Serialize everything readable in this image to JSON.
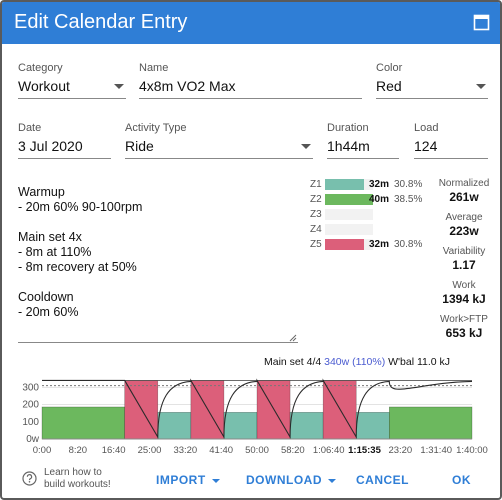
{
  "dialog": {
    "title": "Edit Calendar Entry"
  },
  "form": {
    "category": {
      "label": "Category",
      "value": "Workout"
    },
    "name": {
      "label": "Name",
      "value": "4x8m VO2 Max"
    },
    "color": {
      "label": "Color",
      "value": "Red"
    },
    "date": {
      "label": "Date",
      "value": "3 Jul 2020"
    },
    "activity_type": {
      "label": "Activity Type",
      "value": "Ride"
    },
    "duration": {
      "label": "Duration",
      "value": "1h44m"
    },
    "load": {
      "label": "Load",
      "value": "124"
    }
  },
  "notes": [
    "Warmup",
    "- 20m 60% 90-100rpm",
    "",
    "Main set 4x",
    "- 8m at 110%",
    "- 8m recovery at 50%",
    "",
    "Cooldown",
    "- 20m 60%"
  ],
  "zones": [
    {
      "label": "Z1",
      "time": "32m",
      "pct": "30.8%",
      "fill": 0.808,
      "color": "#78bfad"
    },
    {
      "label": "Z2",
      "time": "40m",
      "pct": "38.5%",
      "fill": 1.0,
      "color": "#6cb85e"
    },
    {
      "label": "Z3",
      "time": "",
      "pct": "",
      "fill": 0,
      "color": "#f2f2f2"
    },
    {
      "label": "Z4",
      "time": "",
      "pct": "",
      "fill": 0,
      "color": "#f2f2f2"
    },
    {
      "label": "Z5",
      "time": "32m",
      "pct": "30.8%",
      "fill": 0.808,
      "color": "#dc5f7a"
    }
  ],
  "stats": [
    {
      "label": "Normalized",
      "value": "261w"
    },
    {
      "label": "Average",
      "value": "223w"
    },
    {
      "label": "Variability",
      "value": "1.17"
    },
    {
      "label": "Work",
      "value": "1394 kJ"
    },
    {
      "label": "Work>FTP",
      "value": "653 kJ"
    }
  ],
  "chart_info": {
    "step": "Main set 4/4",
    "power": "340w (110%)",
    "wbal": "W'bal 11.0 kJ"
  },
  "chart_data": {
    "type": "area",
    "y_ticks": [
      "0w",
      "100",
      "200",
      "300"
    ],
    "ylim": [
      0,
      360
    ],
    "ftp_reference": 310,
    "x_ticks": [
      "0:00",
      "8:20",
      "16:40",
      "25:00",
      "33:20",
      "41:40",
      "50:00",
      "58:20",
      "1:06:40",
      "1:15:35",
      "23:20",
      "1:31:40",
      "1:40:00"
    ],
    "x_highlight": "1:15:35",
    "segments": [
      {
        "start": 0,
        "end": 20,
        "watts": 186,
        "zone": "Z2"
      },
      {
        "start": 20,
        "end": 28,
        "watts": 340,
        "zone": "Z5"
      },
      {
        "start": 28,
        "end": 36,
        "watts": 155,
        "zone": "Z1"
      },
      {
        "start": 36,
        "end": 44,
        "watts": 340,
        "zone": "Z5"
      },
      {
        "start": 44,
        "end": 52,
        "watts": 155,
        "zone": "Z1"
      },
      {
        "start": 52,
        "end": 60,
        "watts": 340,
        "zone": "Z5"
      },
      {
        "start": 60,
        "end": 68,
        "watts": 155,
        "zone": "Z1"
      },
      {
        "start": 68,
        "end": 76,
        "watts": 340,
        "zone": "Z5"
      },
      {
        "start": 76,
        "end": 84,
        "watts": 155,
        "zone": "Z1"
      },
      {
        "start": 84,
        "end": 104,
        "watts": 186,
        "zone": "Z2"
      }
    ],
    "zone_colors": {
      "Z1": "#78bfad",
      "Z2": "#6cb85e",
      "Z5": "#dc5f7a"
    }
  },
  "footer": {
    "help_line1": "Learn how to",
    "help_line2": "build workouts!",
    "import": "IMPORT",
    "download": "DOWNLOAD",
    "cancel": "CANCEL",
    "ok": "OK"
  },
  "colors": {
    "accent": "#2f7ed6",
    "title_bar": "#2f7ed6"
  }
}
